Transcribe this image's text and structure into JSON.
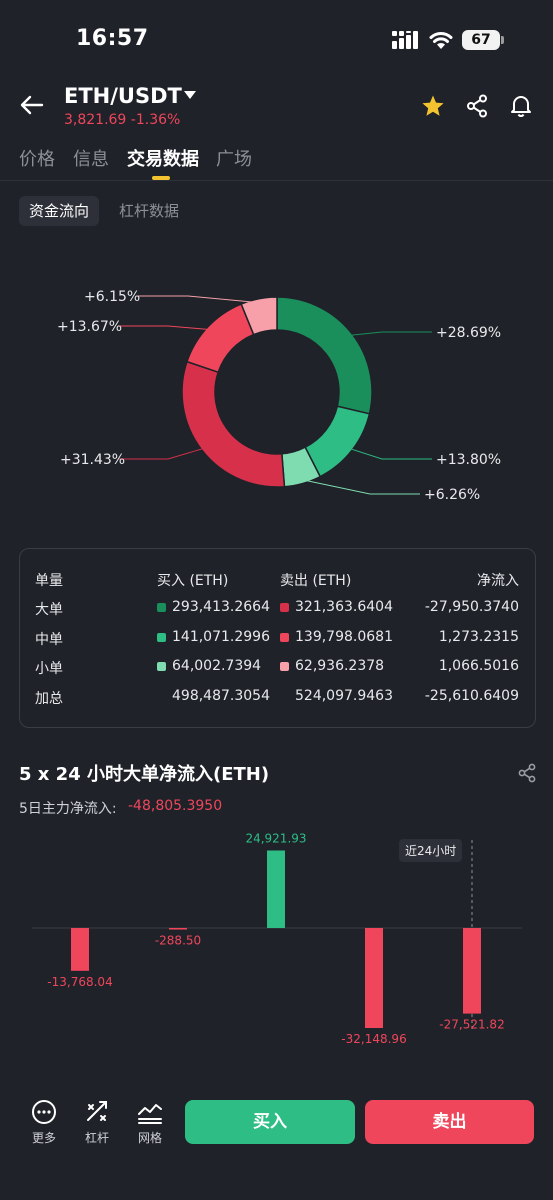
{
  "status_bar": {
    "time": "16:57",
    "battery": "67"
  },
  "header": {
    "pair": "ETH/USDT",
    "price": "3,821.69",
    "change": "-1.36%"
  },
  "tabs": [
    {
      "label": "价格"
    },
    {
      "label": "信息"
    },
    {
      "label": "交易数据"
    },
    {
      "label": "广场"
    }
  ],
  "subtabs": [
    {
      "label": "资金流向"
    },
    {
      "label": "杠杆数据"
    }
  ],
  "donut": {
    "segments": [
      {
        "label": "+28.69%",
        "value": 28.69,
        "color": "#1a8f5c"
      },
      {
        "label": "+13.80%",
        "value": 13.8,
        "color": "#2ebd85"
      },
      {
        "label": "+6.26%",
        "value": 6.26,
        "color": "#7fdcb1"
      },
      {
        "label": "+31.43%",
        "value": 31.43,
        "color": "#d6304b"
      },
      {
        "label": "+13.67%",
        "value": 13.67,
        "color": "#f0465c"
      },
      {
        "label": "+6.15%",
        "value": 6.15,
        "color": "#f7a0aa"
      }
    ]
  },
  "table": {
    "headers": {
      "size": "单量",
      "buy": "买入 (ETH)",
      "sell": "卖出 (ETH)",
      "net": "净流入"
    },
    "rows": [
      {
        "size": "大单",
        "buy": "293,413.2664",
        "sell": "321,363.6404",
        "net": "-27,950.3740",
        "buy_color": "#1a8f5c",
        "sell_color": "#d6304b"
      },
      {
        "size": "中单",
        "buy": "141,071.2996",
        "sell": "139,798.0681",
        "net": "1,273.2315",
        "buy_color": "#2ebd85",
        "sell_color": "#f0465c"
      },
      {
        "size": "小单",
        "buy": "64,002.7394",
        "sell": "62,936.2378",
        "net": "1,066.5016",
        "buy_color": "#7fdcb1",
        "sell_color": "#f7a0aa"
      }
    ],
    "total": {
      "size": "加总",
      "buy": "498,487.3054",
      "sell": "524,097.9463",
      "net": "-25,610.6409"
    }
  },
  "section": {
    "title": "5 x 24 小时大单净流入(ETH)",
    "net_label": "5日主力净流入:",
    "net_value": "-48,805.3950",
    "marker_label": "近24小时"
  },
  "chart_data": {
    "type": "bar",
    "categories": [
      "",
      "",
      "",
      "",
      ""
    ],
    "values": [
      -13768.04,
      -288.5,
      24921.93,
      -32148.96,
      -27521.82
    ],
    "value_labels": [
      "-13,768.04",
      "-288.50",
      "24,921.93",
      "-32,148.96",
      "-27,521.82"
    ],
    "title": "5 x 24 小时大单净流入(ETH)",
    "positive_color": "#2ebd85",
    "negative_color": "#f0465c",
    "grid": false
  },
  "bottom_bar": {
    "more": "更多",
    "leverage": "杠杆",
    "grid": "网格",
    "buy": "买入",
    "sell": "卖出"
  }
}
